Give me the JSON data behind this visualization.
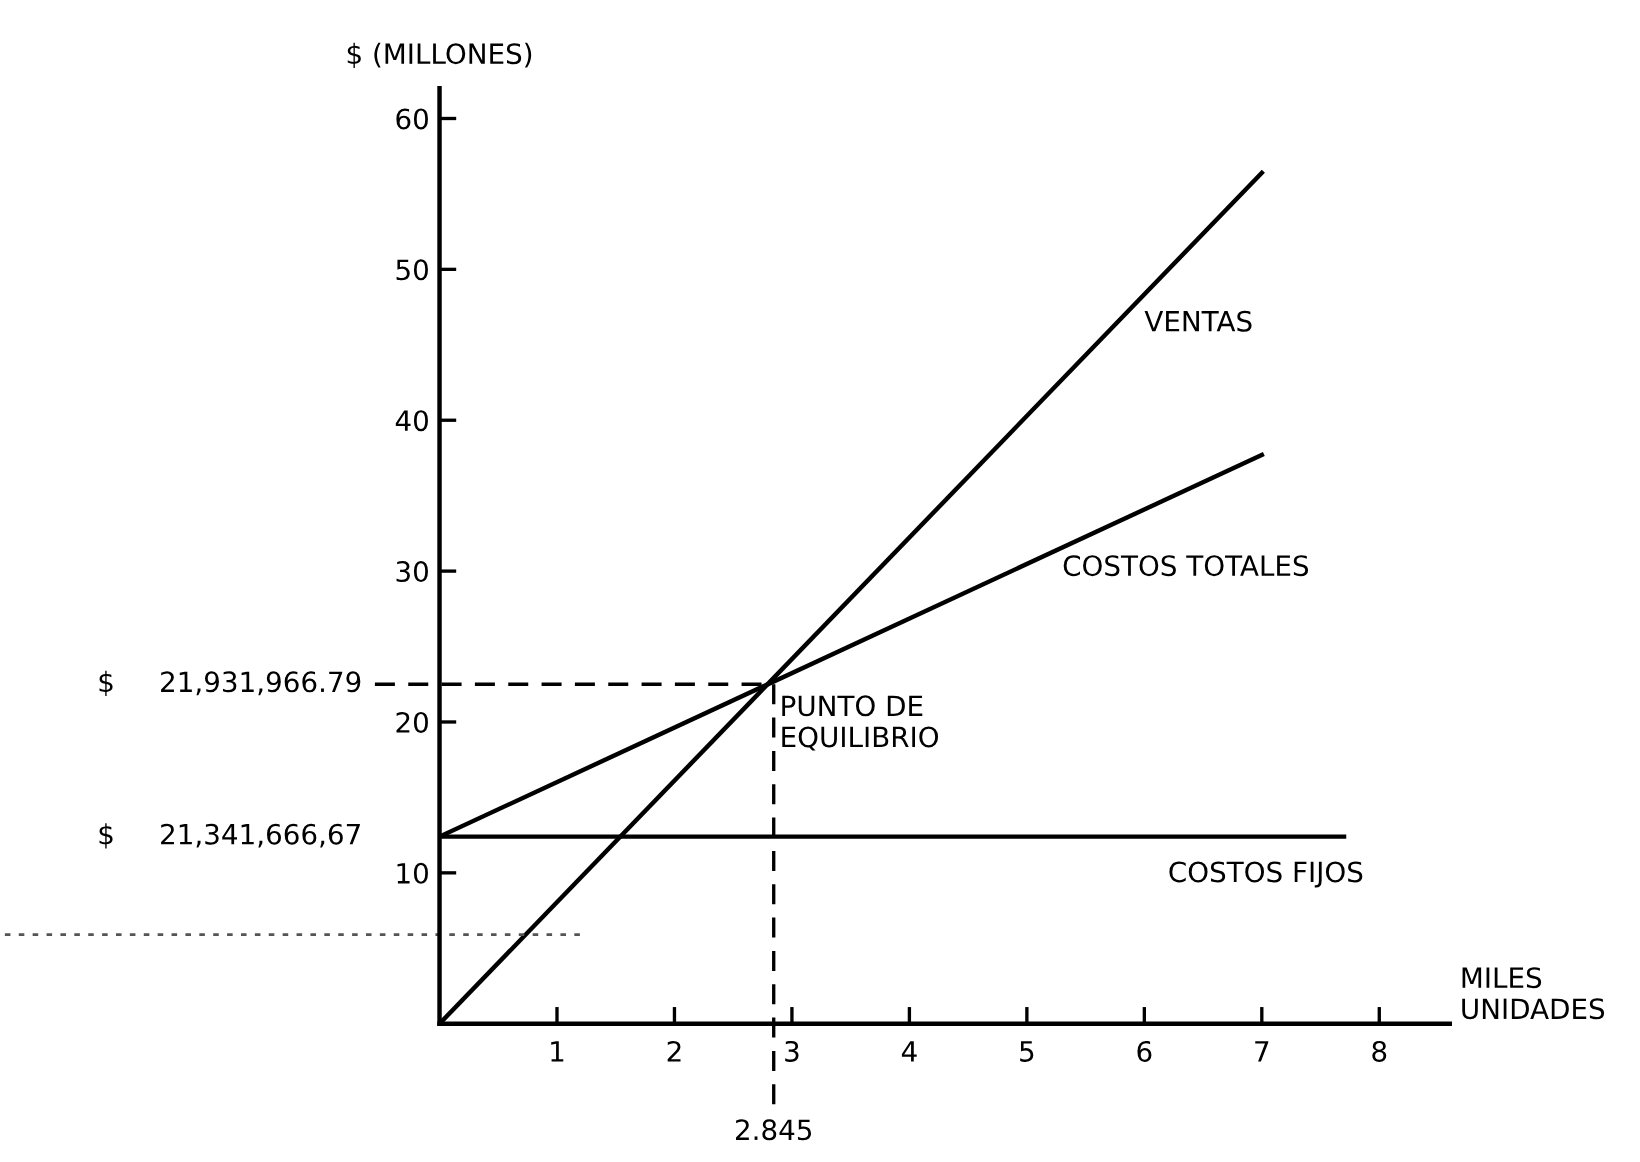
{
  "chart_data": {
    "type": "line",
    "xlabel": "MILES\nUNIDADES",
    "ylabel": "$ (MILLONES)",
    "xlim": [
      0,
      8.6
    ],
    "ylim": [
      0,
      62
    ],
    "xticks": [
      1,
      2,
      3,
      4,
      5,
      6,
      7,
      8
    ],
    "yticks": [
      10,
      20,
      30,
      40,
      50,
      60
    ],
    "series": [
      {
        "name": "VENTAS",
        "color": "#000000",
        "x": [
          0,
          7
        ],
        "values": [
          0,
          56.4
        ]
      },
      {
        "name": "COSTOS TOTALES",
        "color": "#000000",
        "x": [
          0,
          7
        ],
        "values": [
          12.4,
          37.7
        ]
      },
      {
        "name": "COSTOS FIJOS",
        "color": "#000000",
        "x": [
          0,
          7.7
        ],
        "values": [
          12.4,
          12.4
        ]
      }
    ],
    "ref_lines": [
      {
        "axis": "x",
        "value": 2.845,
        "label": "2.845",
        "line_style": "dashed",
        "color": "#000000"
      },
      {
        "axis": "y",
        "value": 22.5,
        "label": "PUNTO DE\nEQUILIBRIO",
        "line_style": "dashed",
        "color": "#000000"
      },
      {
        "axis": "y",
        "value": 5.9,
        "line_style": "dotted",
        "color": "#555555"
      }
    ],
    "annotations": [
      "$     21,931,966.79",
      "$     21,341,666,67"
    ],
    "grid": false,
    "legend": false,
    "marker": "none",
    "line_style": "solid"
  }
}
